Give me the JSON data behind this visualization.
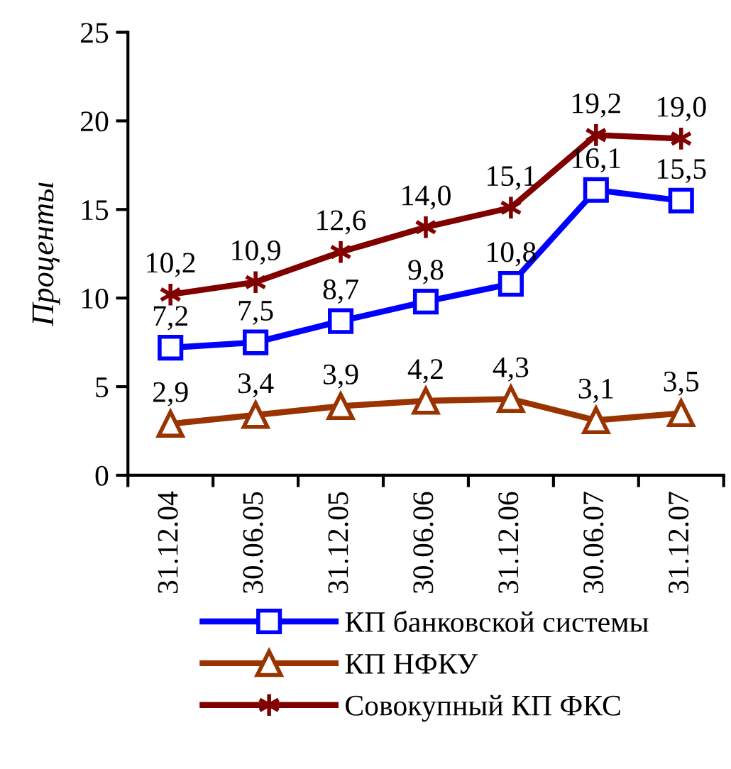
{
  "chart_data": {
    "type": "line",
    "ylabel": "Проценты",
    "categories": [
      "31.12.04",
      "30.06.05",
      "31.12.05",
      "30.06.06",
      "31.12.06",
      "30.06.07",
      "31.12.07"
    ],
    "series": [
      {
        "name": "КП банковской системы",
        "color": "#0000ff",
        "marker": "square",
        "values": [
          7.2,
          7.5,
          8.7,
          9.8,
          10.8,
          16.1,
          15.5
        ],
        "value_labels": [
          "7,2",
          "7,5",
          "8,7",
          "9,8",
          "10,8",
          "16,1",
          "15,5"
        ]
      },
      {
        "name": "КП НФКУ",
        "color": "#993300",
        "marker": "triangle",
        "values": [
          2.9,
          3.4,
          3.9,
          4.2,
          4.3,
          3.1,
          3.5
        ],
        "value_labels": [
          "2,9",
          "3,4",
          "3,9",
          "4,2",
          "4,3",
          "3,1",
          "3,5"
        ]
      },
      {
        "name": "Совокупный КП ФКС",
        "color": "#800000",
        "marker": "cross",
        "values": [
          10.2,
          10.9,
          12.6,
          14.0,
          15.1,
          19.2,
          19.0
        ],
        "value_labels": [
          "10,2",
          "10,9",
          "12,6",
          "14,0",
          "15,1",
          "19,2",
          "19,0"
        ]
      }
    ],
    "ylim": [
      0,
      25
    ],
    "yticks": [
      0,
      5,
      10,
      15,
      20,
      25
    ],
    "grid": false,
    "legend": "bottom",
    "line_style": "solid"
  }
}
